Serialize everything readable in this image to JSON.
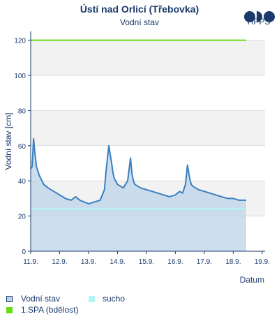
{
  "header": {
    "title": "Ústí nad Orlicí (Třebovka)",
    "subtitle": "Vodní stav",
    "logo_text": "HPPS"
  },
  "colors": {
    "line": "#3a7fc0",
    "fill": "#bcd4ea",
    "dry": "#b3f5f5",
    "spa1": "#66dd11",
    "band": "#f2f2f2",
    "axis": "#1a3a6b"
  },
  "chart_data": {
    "type": "area",
    "title": "",
    "xlabel": "Datum",
    "ylabel": "Vodní stav [cm]",
    "ylim": [
      0,
      125
    ],
    "yticks": [
      "0",
      "20",
      "40",
      "60",
      "80",
      "100",
      "120"
    ],
    "xticks": [
      "11.9.",
      "12.9.",
      "13.9.",
      "14.9.",
      "15.9.",
      "16.9.",
      "17.9.",
      "18.9.",
      "19.9."
    ],
    "xlim_days": [
      11,
      19.1
    ],
    "series": [
      {
        "name": "Vodní stav",
        "x": [
          11.0,
          11.05,
          11.1,
          11.15,
          11.2,
          11.3,
          11.45,
          11.6,
          11.8,
          12.0,
          12.2,
          12.4,
          12.55,
          12.7,
          12.85,
          13.0,
          13.2,
          13.4,
          13.55,
          13.6,
          13.7,
          13.8,
          13.85,
          13.9,
          14.0,
          14.2,
          14.35,
          14.45,
          14.5,
          14.55,
          14.6,
          14.7,
          14.8,
          15.0,
          15.2,
          15.4,
          15.6,
          15.8,
          16.0,
          16.15,
          16.25,
          16.35,
          16.42,
          16.5,
          16.55,
          16.6,
          16.7,
          16.8,
          17.0,
          17.2,
          17.4,
          17.6,
          17.8,
          18.0,
          18.2,
          18.4,
          18.45
        ],
        "y": [
          47,
          48,
          64,
          55,
          48,
          43,
          38,
          36,
          34,
          32,
          30,
          29,
          31,
          29,
          28,
          27,
          28,
          29,
          35,
          45,
          60,
          50,
          44,
          41,
          38,
          36,
          40,
          53,
          44,
          40,
          38,
          37,
          36,
          35,
          34,
          33,
          32,
          31,
          32,
          34,
          33,
          38,
          49,
          41,
          38,
          37,
          36,
          35,
          34,
          33,
          32,
          31,
          30,
          30,
          29,
          29,
          29
        ]
      },
      {
        "name": "sucho",
        "y": 24
      },
      {
        "name": "1.SPA (bdělost)",
        "y": 120
      }
    ],
    "legend": [
      "Vodní stav",
      "sucho",
      "1.SPA (bdělost)"
    ],
    "legend_position": "bottom",
    "grid": true
  }
}
